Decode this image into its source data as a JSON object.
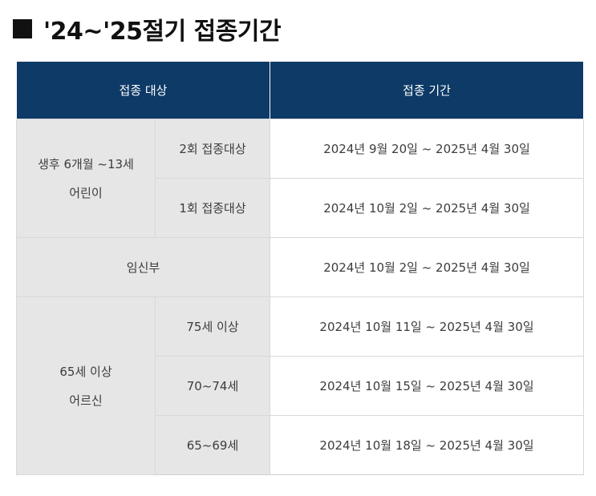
{
  "heading": {
    "title": "'24~'25절기 접종기간"
  },
  "table": {
    "headers": {
      "target": "접종 대상",
      "period": "접종 기간"
    },
    "groups": {
      "children": {
        "label_line1": "생후 6개월 ~13세",
        "label_line2": "어린이",
        "rows": [
          {
            "sub": "2회 접종대상",
            "period": "2024년 9월 20일 ~ 2025년 4월 30일"
          },
          {
            "sub": "1회 접종대상",
            "period": "2024년 10월 2일 ~ 2025년 4월 30일"
          }
        ]
      },
      "pregnant": {
        "label": "임신부",
        "period": "2024년 10월 2일 ~ 2025년 4월 30일"
      },
      "elderly": {
        "label_line1": "65세 이상",
        "label_line2": "어르신",
        "rows": [
          {
            "sub": "75세 이상",
            "period": "2024년 10월 11일 ~ 2025년 4월 30일"
          },
          {
            "sub": "70~74세",
            "period": "2024년 10월 15일 ~ 2025년 4월 30일"
          },
          {
            "sub": "65~69세",
            "period": "2024년 10월 18일 ~ 2025년 4월 30일"
          }
        ]
      }
    }
  }
}
